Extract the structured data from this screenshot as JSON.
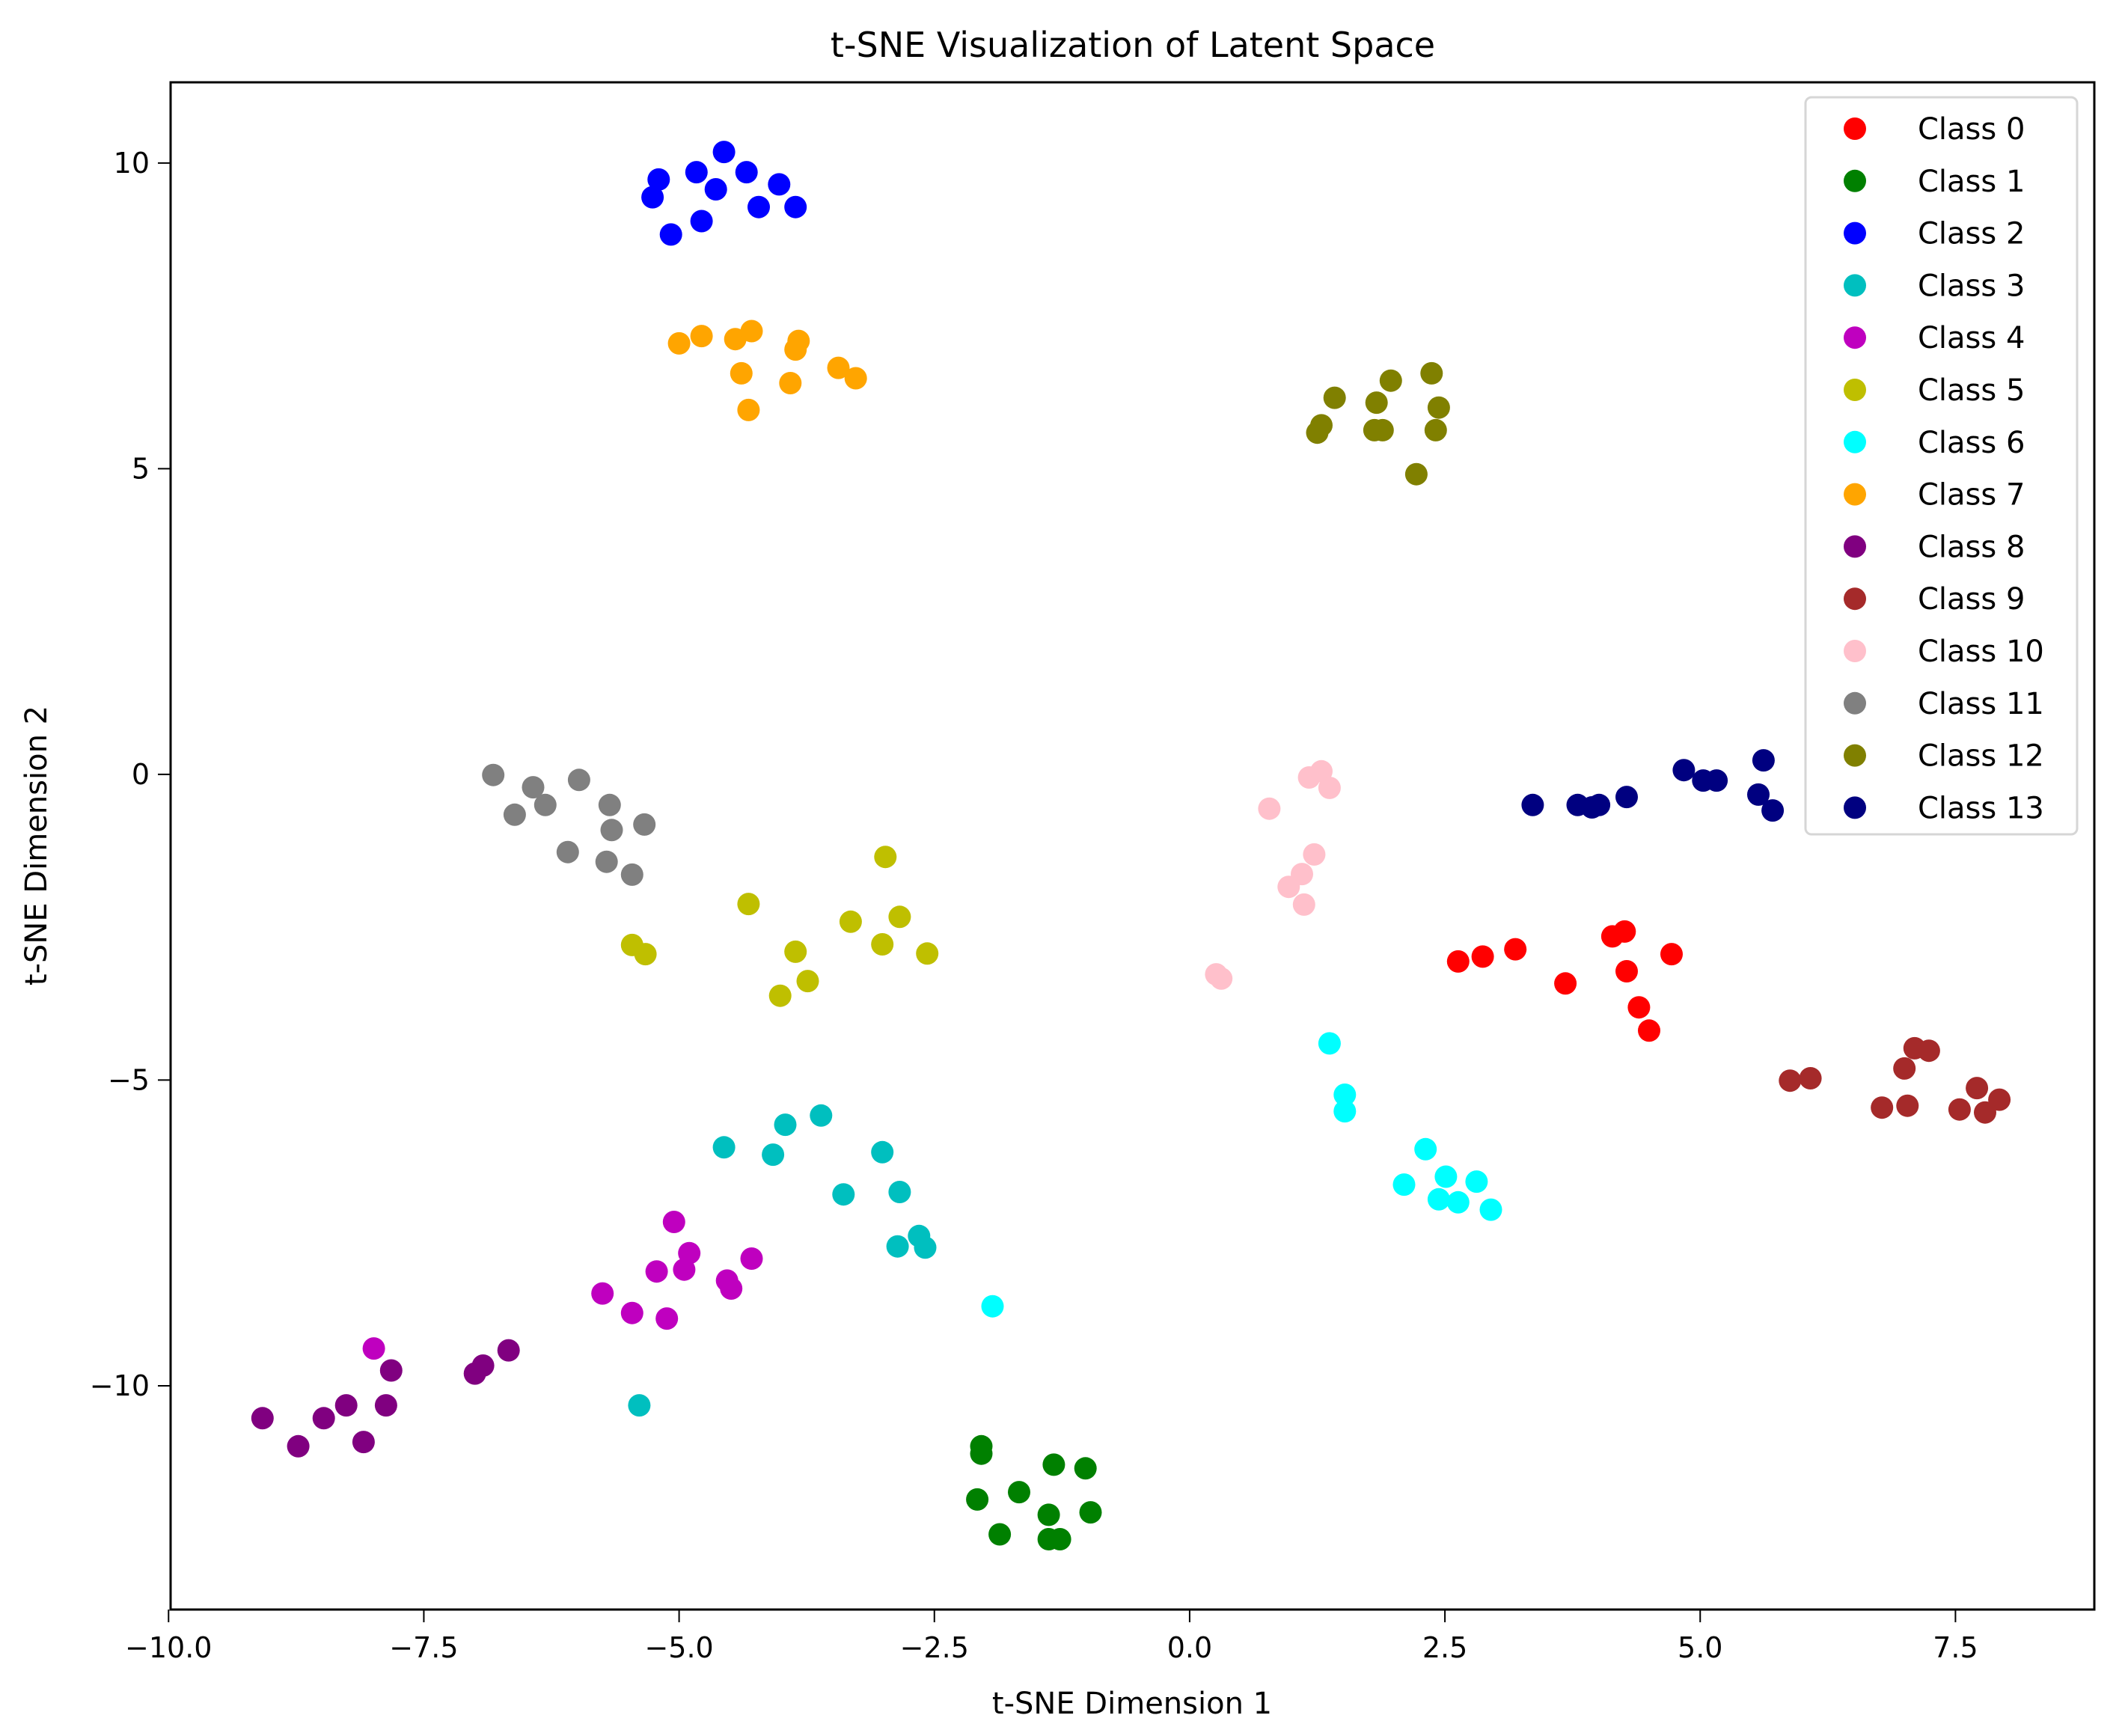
{
  "chart_data": {
    "type": "scatter",
    "title": "t-SNE Visualization of Latent Space",
    "xlabel": "t-SNE Dimension 1",
    "ylabel": "t-SNE Dimension 2",
    "xlim": [
      -9.98,
      8.86
    ],
    "ylim": [
      -13.66,
      11.32
    ],
    "xticks": [
      -10.0,
      -7.5,
      -5.0,
      -2.5,
      0.0,
      2.5,
      5.0,
      7.5
    ],
    "xtick_labels": [
      "−10.0",
      "−7.5",
      "−5.0",
      "−2.5",
      "0.0",
      "2.5",
      "5.0",
      "7.5"
    ],
    "yticks": [
      10,
      5,
      0,
      -5,
      -10
    ],
    "ytick_labels": [
      "10",
      "5",
      "0",
      "−5",
      "−10"
    ],
    "grid": false,
    "legend_position": "upper right",
    "series": [
      {
        "name": "Class 0",
        "color": "#ff0000",
        "points": [
          [
            2.63,
            -3.06
          ],
          [
            2.87,
            -2.98
          ],
          [
            3.19,
            -2.86
          ],
          [
            3.68,
            -3.42
          ],
          [
            4.14,
            -2.65
          ],
          [
            4.26,
            -2.57
          ],
          [
            4.72,
            -2.94
          ],
          [
            4.28,
            -3.22
          ],
          [
            4.4,
            -3.81
          ],
          [
            4.5,
            -4.19
          ]
        ]
      },
      {
        "name": "Class 1",
        "color": "#008000",
        "points": [
          [
            -2.04,
            -10.99
          ],
          [
            -2.04,
            -11.11
          ],
          [
            -1.33,
            -11.29
          ],
          [
            -1.02,
            -11.35
          ],
          [
            -2.08,
            -11.86
          ],
          [
            -1.67,
            -11.74
          ],
          [
            -1.38,
            -12.11
          ],
          [
            -0.97,
            -12.07
          ],
          [
            -1.86,
            -12.43
          ],
          [
            -1.38,
            -12.51
          ],
          [
            -1.27,
            -12.51
          ]
        ]
      },
      {
        "name": "Class 2",
        "color": "#0000ff",
        "points": [
          [
            -5.2,
            9.73
          ],
          [
            -5.26,
            9.44
          ],
          [
            -4.83,
            9.85
          ],
          [
            -4.56,
            10.18
          ],
          [
            -4.34,
            9.85
          ],
          [
            -4.64,
            9.57
          ],
          [
            -4.02,
            9.65
          ],
          [
            -4.22,
            9.28
          ],
          [
            -3.86,
            9.28
          ],
          [
            -4.78,
            9.05
          ],
          [
            -5.08,
            8.83
          ]
        ]
      },
      {
        "name": "Class 3",
        "color": "#00bfbf",
        "points": [
          [
            -4.56,
            -6.1
          ],
          [
            -4.08,
            -6.22
          ],
          [
            -3.96,
            -5.73
          ],
          [
            -3.61,
            -5.58
          ],
          [
            -3.01,
            -6.18
          ],
          [
            -3.39,
            -6.87
          ],
          [
            -2.84,
            -6.83
          ],
          [
            -2.86,
            -7.72
          ],
          [
            -2.65,
            -7.55
          ],
          [
            -2.59,
            -7.74
          ],
          [
            -5.39,
            -10.32
          ]
        ]
      },
      {
        "name": "Class 4",
        "color": "#bf00bf",
        "points": [
          [
            -5.05,
            -7.32
          ],
          [
            -4.9,
            -7.83
          ],
          [
            -4.95,
            -8.1
          ],
          [
            -5.22,
            -8.13
          ],
          [
            -4.29,
            -7.92
          ],
          [
            -4.53,
            -8.28
          ],
          [
            -4.49,
            -8.41
          ],
          [
            -5.75,
            -8.49
          ],
          [
            -5.46,
            -8.81
          ],
          [
            -5.12,
            -8.9
          ],
          [
            -7.99,
            -9.39
          ]
        ]
      },
      {
        "name": "Class 5",
        "color": "#bfbf00",
        "points": [
          [
            -5.46,
            -2.79
          ],
          [
            -5.33,
            -2.94
          ],
          [
            -4.32,
            -2.12
          ],
          [
            -2.98,
            -1.35
          ],
          [
            -3.32,
            -2.41
          ],
          [
            -2.84,
            -2.33
          ],
          [
            -3.01,
            -2.78
          ],
          [
            -2.57,
            -2.93
          ],
          [
            -3.86,
            -2.9
          ],
          [
            -3.74,
            -3.38
          ],
          [
            -4.01,
            -3.62
          ]
        ]
      },
      {
        "name": "Class 6",
        "color": "#00ffff",
        "points": [
          [
            1.37,
            -4.4
          ],
          [
            1.52,
            -5.24
          ],
          [
            1.52,
            -5.51
          ],
          [
            2.31,
            -6.13
          ],
          [
            2.1,
            -6.71
          ],
          [
            2.51,
            -6.58
          ],
          [
            2.81,
            -6.66
          ],
          [
            2.44,
            -6.95
          ],
          [
            2.63,
            -7.0
          ],
          [
            2.95,
            -7.12
          ],
          [
            -1.93,
            -8.7
          ]
        ]
      },
      {
        "name": "Class 7",
        "color": "#ffa500",
        "points": [
          [
            -5.0,
            7.05
          ],
          [
            -4.78,
            7.17
          ],
          [
            -4.45,
            7.12
          ],
          [
            -4.29,
            7.25
          ],
          [
            -3.83,
            7.09
          ],
          [
            -3.86,
            6.95
          ],
          [
            -4.39,
            6.56
          ],
          [
            -3.91,
            6.4
          ],
          [
            -3.44,
            6.65
          ],
          [
            -3.27,
            6.48
          ],
          [
            -4.32,
            5.96
          ]
        ]
      },
      {
        "name": "Class 8",
        "color": "#800080",
        "points": [
          [
            -9.08,
            -10.53
          ],
          [
            -8.73,
            -10.99
          ],
          [
            -8.48,
            -10.53
          ],
          [
            -8.26,
            -10.32
          ],
          [
            -8.09,
            -10.92
          ],
          [
            -7.87,
            -10.32
          ],
          [
            -7.82,
            -9.75
          ],
          [
            -7.0,
            -9.8
          ],
          [
            -6.92,
            -9.67
          ],
          [
            -6.67,
            -9.42
          ]
        ]
      },
      {
        "name": "Class 9",
        "color": "#a52a2a",
        "points": [
          [
            5.88,
            -5.01
          ],
          [
            6.08,
            -4.97
          ],
          [
            7.1,
            -4.48
          ],
          [
            7.24,
            -4.52
          ],
          [
            7.0,
            -4.81
          ],
          [
            6.78,
            -5.45
          ],
          [
            7.03,
            -5.42
          ],
          [
            7.71,
            -5.13
          ],
          [
            7.93,
            -5.32
          ],
          [
            7.54,
            -5.48
          ],
          [
            7.79,
            -5.53
          ]
        ]
      },
      {
        "name": "Class 10",
        "color": "#ffc0cb",
        "points": [
          [
            1.17,
            -0.05
          ],
          [
            1.29,
            0.05
          ],
          [
            1.37,
            -0.22
          ],
          [
            0.78,
            -0.56
          ],
          [
            1.22,
            -1.31
          ],
          [
            1.1,
            -1.63
          ],
          [
            0.97,
            -1.84
          ],
          [
            1.12,
            -2.13
          ],
          [
            0.26,
            -3.27
          ],
          [
            0.31,
            -3.34
          ]
        ]
      },
      {
        "name": "Class 11",
        "color": "#808080",
        "points": [
          [
            -6.82,
            -0.01
          ],
          [
            -6.43,
            -0.21
          ],
          [
            -6.31,
            -0.5
          ],
          [
            -6.61,
            -0.66
          ],
          [
            -5.98,
            -0.09
          ],
          [
            -5.68,
            -0.5
          ],
          [
            -5.66,
            -0.91
          ],
          [
            -5.34,
            -0.82
          ],
          [
            -6.09,
            -1.27
          ],
          [
            -5.71,
            -1.43
          ],
          [
            -5.46,
            -1.64
          ]
        ]
      },
      {
        "name": "Class 12",
        "color": "#808000",
        "points": [
          [
            1.42,
            6.16
          ],
          [
            1.29,
            5.71
          ],
          [
            1.25,
            5.59
          ],
          [
            1.83,
            6.08
          ],
          [
            1.97,
            6.44
          ],
          [
            1.81,
            5.63
          ],
          [
            1.89,
            5.63
          ],
          [
            2.37,
            6.56
          ],
          [
            2.44,
            6.0
          ],
          [
            2.41,
            5.63
          ],
          [
            2.22,
            4.91
          ]
        ]
      },
      {
        "name": "Class 13",
        "color": "#000080",
        "points": [
          [
            3.36,
            -0.5
          ],
          [
            3.8,
            -0.5
          ],
          [
            3.94,
            -0.54
          ],
          [
            4.01,
            -0.5
          ],
          [
            4.28,
            -0.37
          ],
          [
            4.84,
            0.07
          ],
          [
            5.03,
            -0.1
          ],
          [
            5.16,
            -0.1
          ],
          [
            5.62,
            0.23
          ],
          [
            5.57,
            -0.33
          ],
          [
            5.71,
            -0.59
          ]
        ]
      }
    ]
  }
}
